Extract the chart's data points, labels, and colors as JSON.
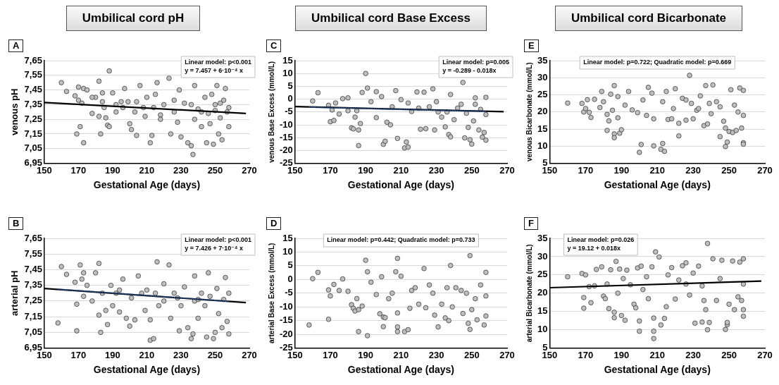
{
  "chart_data": [
    {
      "type": "scatter",
      "title": "Umbilical cord pH",
      "subtitle": "A",
      "xlabel": "Gestational Age (days)",
      "ylabel": "venous pH",
      "xlim": [
        150,
        270
      ],
      "xticks": [
        150,
        170,
        190,
        210,
        230,
        250,
        270
      ],
      "ylim": [
        6.95,
        7.65
      ],
      "yticks": [
        {
          "value": 6.95,
          "label": "6,95"
        },
        {
          "value": 7.05,
          "label": "7,05"
        },
        {
          "value": 7.15,
          "label": "7,15"
        },
        {
          "value": 7.25,
          "label": "7,25"
        },
        {
          "value": 7.35,
          "label": "7,35"
        },
        {
          "value": 7.45,
          "label": "7,45"
        },
        {
          "value": 7.55,
          "label": "7,55"
        },
        {
          "value": 7.65,
          "label": "7,65"
        }
      ],
      "grid": "y",
      "legend": false,
      "marker": "circle",
      "annotations": [
        "Linear model: p<0.001",
        "y = 7.457 + 6·10⁻⁴ x"
      ],
      "series": [
        {
          "type": "scatter",
          "color": "#bfbfbf",
          "x": [
            160,
            163,
            168,
            169,
            170,
            170,
            171,
            172,
            173,
            173,
            175,
            178,
            180,
            182,
            182,
            183,
            184,
            185,
            186,
            187,
            188,
            188,
            190,
            192,
            195,
            197,
            199,
            200,
            201,
            203,
            204,
            206,
            208,
            210,
            212,
            213,
            215,
            216,
            218,
            220,
            223,
            224,
            226,
            228,
            229,
            230,
            232,
            234,
            236,
            237,
            238,
            238,
            240,
            242,
            244,
            245,
            246,
            248,
            249,
            250,
            251,
            252,
            253,
            254,
            255,
            256,
            257,
            258,
            258,
            236,
            242,
            247,
            250,
            253,
            226,
            218,
            214,
            209,
            204,
            196,
            192,
            184,
            178
          ],
          "values": [
            7.5,
            7.44,
            7.41,
            7.15,
            7.38,
            7.47,
            7.2,
            7.36,
            7.09,
            7.46,
            7.45,
            7.29,
            7.4,
            7.51,
            7.27,
            7.15,
            7.43,
            7.33,
            7.26,
            7.21,
            7.58,
            7.2,
            7.43,
            7.3,
            7.37,
            7.46,
            7.37,
            7.22,
            7.18,
            7.3,
            7.14,
            7.48,
            7.33,
            7.4,
            7.09,
            7.14,
            7.42,
            7.5,
            7.28,
            7.35,
            7.53,
            7.15,
            7.3,
            7.23,
            7.45,
            7.13,
            7.36,
            7.09,
            7.07,
            7.01,
            7.48,
            7.25,
            7.32,
            7.2,
            7.4,
            7.09,
            7.29,
            7.42,
            7.08,
            7.35,
            7.48,
            7.15,
            7.26,
            7.11,
            7.38,
            7.46,
            7.3,
            7.2,
            7.33,
            7.35,
            7.3,
            7.22,
            7.31,
            7.36,
            7.38,
            7.25,
            7.33,
            7.27,
            7.37,
            7.33,
            7.35,
            7.37,
            7.4
          ]
        },
        {
          "type": "line",
          "color": "#000000",
          "marker": "none",
          "x": [
            150,
            268
          ],
          "values": [
            7.365,
            7.29
          ]
        }
      ]
    },
    {
      "type": "scatter",
      "title": "Umbilical cord Base Excess",
      "subtitle": "C",
      "xlabel": "Gestational Age (days)",
      "ylabel": "venous Base Excess (mmol/L)",
      "xlim": [
        150,
        270
      ],
      "xticks": [
        150,
        170,
        190,
        210,
        230,
        250,
        270
      ],
      "ylim": [
        -25,
        15
      ],
      "yticks": [
        -25,
        -20,
        -15,
        -10,
        -5,
        0,
        5,
        10,
        15
      ],
      "grid": "y",
      "legend": false,
      "marker": "circle",
      "annotations": [
        "Linear model: p=0.005",
        "y = -0.289 - 0.018x"
      ],
      "series": [
        {
          "type": "scatter",
          "color": "#bfbfbf",
          "x": [
            160,
            163,
            169,
            170,
            171,
            172,
            173,
            175,
            177,
            180,
            180,
            182,
            183,
            184,
            185,
            186,
            186,
            187,
            188,
            190,
            191,
            193,
            196,
            196,
            199,
            200,
            201,
            202,
            204,
            207,
            208,
            210,
            212,
            213,
            214,
            216,
            219,
            221,
            223,
            224,
            226,
            228,
            229,
            231,
            233,
            235,
            237,
            238,
            238,
            240,
            242,
            245,
            246,
            247,
            248,
            249,
            250,
            251,
            252,
            254,
            255,
            256,
            257,
            258,
            258,
            258,
            252,
            244,
            236,
            230,
            220,
            214,
            205
          ],
          "values": [
            -0.7,
            2.5,
            -2.4,
            -8.8,
            -4.2,
            -8.3,
            -1.5,
            -5.8,
            0.2,
            -4.5,
            0.5,
            -11.2,
            -11.6,
            -7.0,
            -4.5,
            -18.1,
            -12.0,
            -9.5,
            2.6,
            10.0,
            4.3,
            -1.0,
            2.9,
            -7.2,
            1.0,
            -17.6,
            -16.4,
            -9.0,
            -10.0,
            3.3,
            -15.3,
            -0.2,
            -19.0,
            -16.7,
            -18.7,
            -4.8,
            2.8,
            -11.7,
            2.7,
            -11.5,
            -3.0,
            4.0,
            -12.0,
            -5.0,
            -7.0,
            -10.8,
            -13.8,
            -14.7,
            1.8,
            -8.0,
            -3.5,
            6.5,
            -15.1,
            -5.5,
            -11.0,
            -15.8,
            -17.5,
            -8.5,
            -2.0,
            -12.0,
            -4.0,
            -14.8,
            -13.0,
            -16.0,
            0.7,
            -6.0,
            0.5,
            -2.0,
            -5.0,
            -1.0,
            -3.5,
            -1.5,
            -3.0
          ]
        },
        {
          "type": "line",
          "color": "#000000",
          "marker": "none",
          "x": [
            150,
            268
          ],
          "values": [
            -2.9,
            -4.9
          ]
        },
        {
          "type": "line",
          "color": "#2e5597",
          "marker": "none",
          "line_style": "dotted",
          "x": [
            158,
            258
          ],
          "values": [
            -3.1,
            -4.8
          ]
        }
      ]
    },
    {
      "type": "scatter",
      "title": "Umbilical cord Bicarbonate",
      "subtitle": "E",
      "xlabel": "Gestational Age (days)",
      "ylabel": "venous Bicarbonate (mmol/L)",
      "xlim": [
        150,
        270
      ],
      "xticks": [
        150,
        170,
        190,
        210,
        230,
        250,
        270
      ],
      "ylim": [
        5,
        35
      ],
      "yticks": [
        5,
        10,
        15,
        20,
        25,
        30,
        35
      ],
      "grid": "y",
      "legend": false,
      "marker": "circle",
      "annotations": [
        "Linear model: p=0.722; Quadratic model: p=0.669"
      ],
      "series": [
        {
          "type": "scatter",
          "color": "#bfbfbf",
          "x": [
            160,
            168,
            169,
            170,
            171,
            172,
            173,
            175,
            178,
            179,
            180,
            182,
            182,
            183,
            184,
            185,
            186,
            186,
            186,
            188,
            188,
            189,
            190,
            192,
            194,
            196,
            199,
            200,
            201,
            202,
            204,
            205,
            207,
            208,
            208,
            212,
            213,
            214,
            215,
            216,
            218,
            220,
            222,
            222,
            224,
            226,
            228,
            229,
            230,
            232,
            234,
            236,
            237,
            238,
            240,
            241,
            243,
            245,
            247,
            248,
            248,
            249,
            250,
            251,
            252,
            254,
            255,
            256,
            257,
            258,
            258,
            258,
            258,
            253,
            245,
            239,
            233,
            226,
            219,
            213
          ],
          "values": [
            22.6,
            22.5,
            20.0,
            21.0,
            23.6,
            19.9,
            18.4,
            23.7,
            21.3,
            26.0,
            23.0,
            14.6,
            19.3,
            17.4,
            25.2,
            20.5,
            27.7,
            13.6,
            12.5,
            24.5,
            18.3,
            13.8,
            14.8,
            22.0,
            26.0,
            20.6,
            19.8,
            8.2,
            10.5,
            23.5,
            19.0,
            27.2,
            25.5,
            10.1,
            18.0,
            9.1,
            10.8,
            8.5,
            26.0,
            17.8,
            18.0,
            26.8,
            16.7,
            13.0,
            24.0,
            17.6,
            30.7,
            22.5,
            18.0,
            20.5,
            24.7,
            16.0,
            27.7,
            16.5,
            19.5,
            27.9,
            23.0,
            12.8,
            17.3,
            9.9,
            15.3,
            11.2,
            14.3,
            26.5,
            14.0,
            14.6,
            20.0,
            27.0,
            15.3,
            11.0,
            10.6,
            26.3,
            19.0,
            22.0,
            21.5,
            22.5,
            21.0,
            23.5,
            21.0,
            23.0
          ]
        }
      ]
    },
    {
      "type": "scatter",
      "subtitle": "B",
      "xlabel": "Gestational Age (days)",
      "ylabel": "arterial pH",
      "xlim": [
        150,
        270
      ],
      "xticks": [
        150,
        170,
        190,
        210,
        230,
        250,
        270
      ],
      "ylim": [
        6.95,
        7.65
      ],
      "yticks": [
        {
          "value": 6.95,
          "label": "6,95"
        },
        {
          "value": 7.05,
          "label": "7,05"
        },
        {
          "value": 7.15,
          "label": "7,15"
        },
        {
          "value": 7.25,
          "label": "7,25"
        },
        {
          "value": 7.35,
          "label": "7,35"
        },
        {
          "value": 7.45,
          "label": "7,45"
        },
        {
          "value": 7.55,
          "label": "7,55"
        },
        {
          "value": 7.65,
          "label": "7,65"
        }
      ],
      "grid": "y",
      "legend": false,
      "marker": "circle",
      "annotations": [
        "Linear model: p<0.001",
        "y = 7.426 + 7·10⁻⁴ x"
      ],
      "series": [
        {
          "type": "scatter",
          "color": "#bfbfbf",
          "x": [
            158,
            160,
            163,
            168,
            169,
            169,
            171,
            172,
            173,
            173,
            175,
            178,
            180,
            182,
            182,
            183,
            184,
            186,
            187,
            189,
            190,
            192,
            194,
            196,
            198,
            200,
            201,
            203,
            205,
            207,
            209,
            212,
            212,
            214,
            215,
            216,
            217,
            220,
            223,
            224,
            226,
            229,
            230,
            232,
            234,
            236,
            237,
            238,
            238,
            240,
            242,
            245,
            246,
            247,
            249,
            250,
            251,
            252,
            254,
            255,
            256,
            257,
            258,
            258,
            244,
            240,
            228,
            220,
            210,
            194
          ],
          "values": [
            7.11,
            7.47,
            7.42,
            7.37,
            7.06,
            7.23,
            7.48,
            7.39,
            7.28,
            7.43,
            7.35,
            7.25,
            7.43,
            7.49,
            7.16,
            7.05,
            7.3,
            7.19,
            7.1,
            7.35,
            7.22,
            7.3,
            7.18,
            7.39,
            7.14,
            7.09,
            7.27,
            7.13,
            7.41,
            7.3,
            7.19,
            7.13,
            7.0,
            7.01,
            7.3,
            7.5,
            7.22,
            7.36,
            7.48,
            7.14,
            7.3,
            7.06,
            7.22,
            7.34,
            7.08,
            7.01,
            7.04,
            7.41,
            7.25,
            7.14,
            7.3,
            7.02,
            7.43,
            7.28,
            7.01,
            7.05,
            7.33,
            7.17,
            7.08,
            7.26,
            7.4,
            7.12,
            7.04,
            7.3,
            7.22,
            7.26,
            7.27,
            7.25,
            7.32,
            7.32
          ]
        },
        {
          "type": "line",
          "color": "#000000",
          "marker": "none",
          "x": [
            150,
            268
          ],
          "values": [
            7.33,
            7.24
          ]
        },
        {
          "type": "line",
          "color": "#2e5597",
          "marker": "none",
          "line_style": "dotted",
          "x": [
            158,
            258
          ],
          "values": [
            7.325,
            7.248
          ]
        }
      ]
    },
    {
      "type": "scatter",
      "subtitle": "D",
      "xlabel": "Gestational Age (days)",
      "ylabel": "arterial Base Excess (mmol/L)",
      "xlim": [
        150,
        270
      ],
      "xticks": [
        150,
        170,
        190,
        210,
        230,
        250,
        270
      ],
      "ylim": [
        -25,
        15
      ],
      "yticks": [
        -25,
        -20,
        -15,
        -10,
        -5,
        0,
        5,
        10,
        15
      ],
      "grid": "y",
      "legend": false,
      "marker": "circle",
      "annotations": [
        "Linear model: p=0.442; Quadratic model: p=0.733"
      ],
      "series": [
        {
          "type": "scatter",
          "color": "#bfbfbf",
          "x": [
            158,
            160,
            163,
            169,
            169,
            170,
            172,
            175,
            177,
            180,
            182,
            183,
            184,
            185,
            186,
            186,
            188,
            190,
            191,
            191,
            193,
            196,
            198,
            199,
            200,
            200,
            201,
            203,
            205,
            207,
            208,
            208,
            208,
            208,
            210,
            212,
            214,
            215,
            216,
            220,
            223,
            224,
            226,
            229,
            231,
            233,
            235,
            237,
            238,
            239,
            241,
            245,
            247,
            248,
            249,
            249,
            250,
            252,
            253,
            255,
            257,
            258,
            258,
            258,
            244,
            236,
            228,
            218
          ],
          "values": [
            -16.6,
            0.3,
            2.6,
            -14.5,
            -3.8,
            -6.0,
            -1.8,
            -4.0,
            0.2,
            -4.3,
            -9.2,
            -10.5,
            -11.5,
            -7.0,
            -19.0,
            -11.0,
            -9.7,
            7.0,
            -20.5,
            2.8,
            -1.0,
            -5.5,
            -12.5,
            1.0,
            -17.2,
            -13.7,
            -13.9,
            -7.0,
            -5.0,
            2.8,
            7.7,
            -12.2,
            -17.3,
            -19.0,
            1.2,
            -19.0,
            -18.3,
            -10.5,
            -4.0,
            -9.0,
            4.0,
            -10.3,
            -2.0,
            -13.0,
            -17.3,
            -9.0,
            -14.0,
            -15.0,
            5.1,
            -10.0,
            -3.0,
            -12.4,
            -5.0,
            -16.0,
            8.7,
            -18.2,
            -11.0,
            -7.0,
            -14.7,
            -2.0,
            -16.6,
            -13.3,
            2.6,
            -6.0,
            -4.0,
            -3.0,
            -5.0,
            -3.0
          ]
        }
      ]
    },
    {
      "type": "scatter",
      "subtitle": "F",
      "xlabel": "Gestational Age (days)",
      "ylabel": "arterial Bicarbonate (mmol/L)",
      "xlim": [
        150,
        270
      ],
      "xticks": [
        150,
        170,
        190,
        210,
        230,
        250,
        270
      ],
      "ylim": [
        5,
        35
      ],
      "yticks": [
        5,
        10,
        15,
        20,
        25,
        30,
        35
      ],
      "grid": "y",
      "legend": false,
      "marker": "circle",
      "annotations": [
        "Linear model: p=0.026",
        "y = 19.12 + 0.018x"
      ],
      "series": [
        {
          "type": "scatter",
          "color": "#bfbfbf",
          "x": [
            160,
            168,
            169,
            169,
            170,
            172,
            173,
            175,
            176,
            179,
            180,
            181,
            182,
            183,
            184,
            186,
            186,
            187,
            188,
            189,
            190,
            191,
            192,
            193,
            195,
            197,
            198,
            199,
            200,
            200,
            201,
            202,
            204,
            205,
            207,
            208,
            208,
            208,
            209,
            211,
            212,
            214,
            215,
            216,
            218,
            220,
            222,
            224,
            226,
            228,
            230,
            231,
            233,
            235,
            236,
            237,
            238,
            238,
            239,
            241,
            243,
            246,
            248,
            249,
            249,
            250,
            252,
            253,
            255,
            256,
            257,
            258,
            258,
            258,
            258,
            245,
            235,
            226
          ],
          "values": [
            24.5,
            25.4,
            18.8,
            15.9,
            25.0,
            21.8,
            17.4,
            22.0,
            26.5,
            27.2,
            19.2,
            18.5,
            22.5,
            15.8,
            26.4,
            14.8,
            13.3,
            28.7,
            20.0,
            26.6,
            13.9,
            24.0,
            12.6,
            26.3,
            22.3,
            17.0,
            16.0,
            26.9,
            9.6,
            12.4,
            27.4,
            21.0,
            24.5,
            18.5,
            27.2,
            9.6,
            7.6,
            13.2,
            31.3,
            29.9,
            11.3,
            13.1,
            16.3,
            25.0,
            27.0,
            18.4,
            23.6,
            27.5,
            28.3,
            19.5,
            25.5,
            11.8,
            27.4,
            12.1,
            18.0,
            15.5,
            33.6,
            10.0,
            12.0,
            29.4,
            18.0,
            29.0,
            10.1,
            11.4,
            12.0,
            17.0,
            28.8,
            15.5,
            19.0,
            28.5,
            18.0,
            13.7,
            29.4,
            15.5,
            22.5,
            24.0,
            22.0,
            22.5
          ]
        },
        {
          "type": "line",
          "color": "#000000",
          "marker": "none",
          "x": [
            150,
            268
          ],
          "values": [
            21.5,
            23.3
          ]
        }
      ]
    }
  ]
}
